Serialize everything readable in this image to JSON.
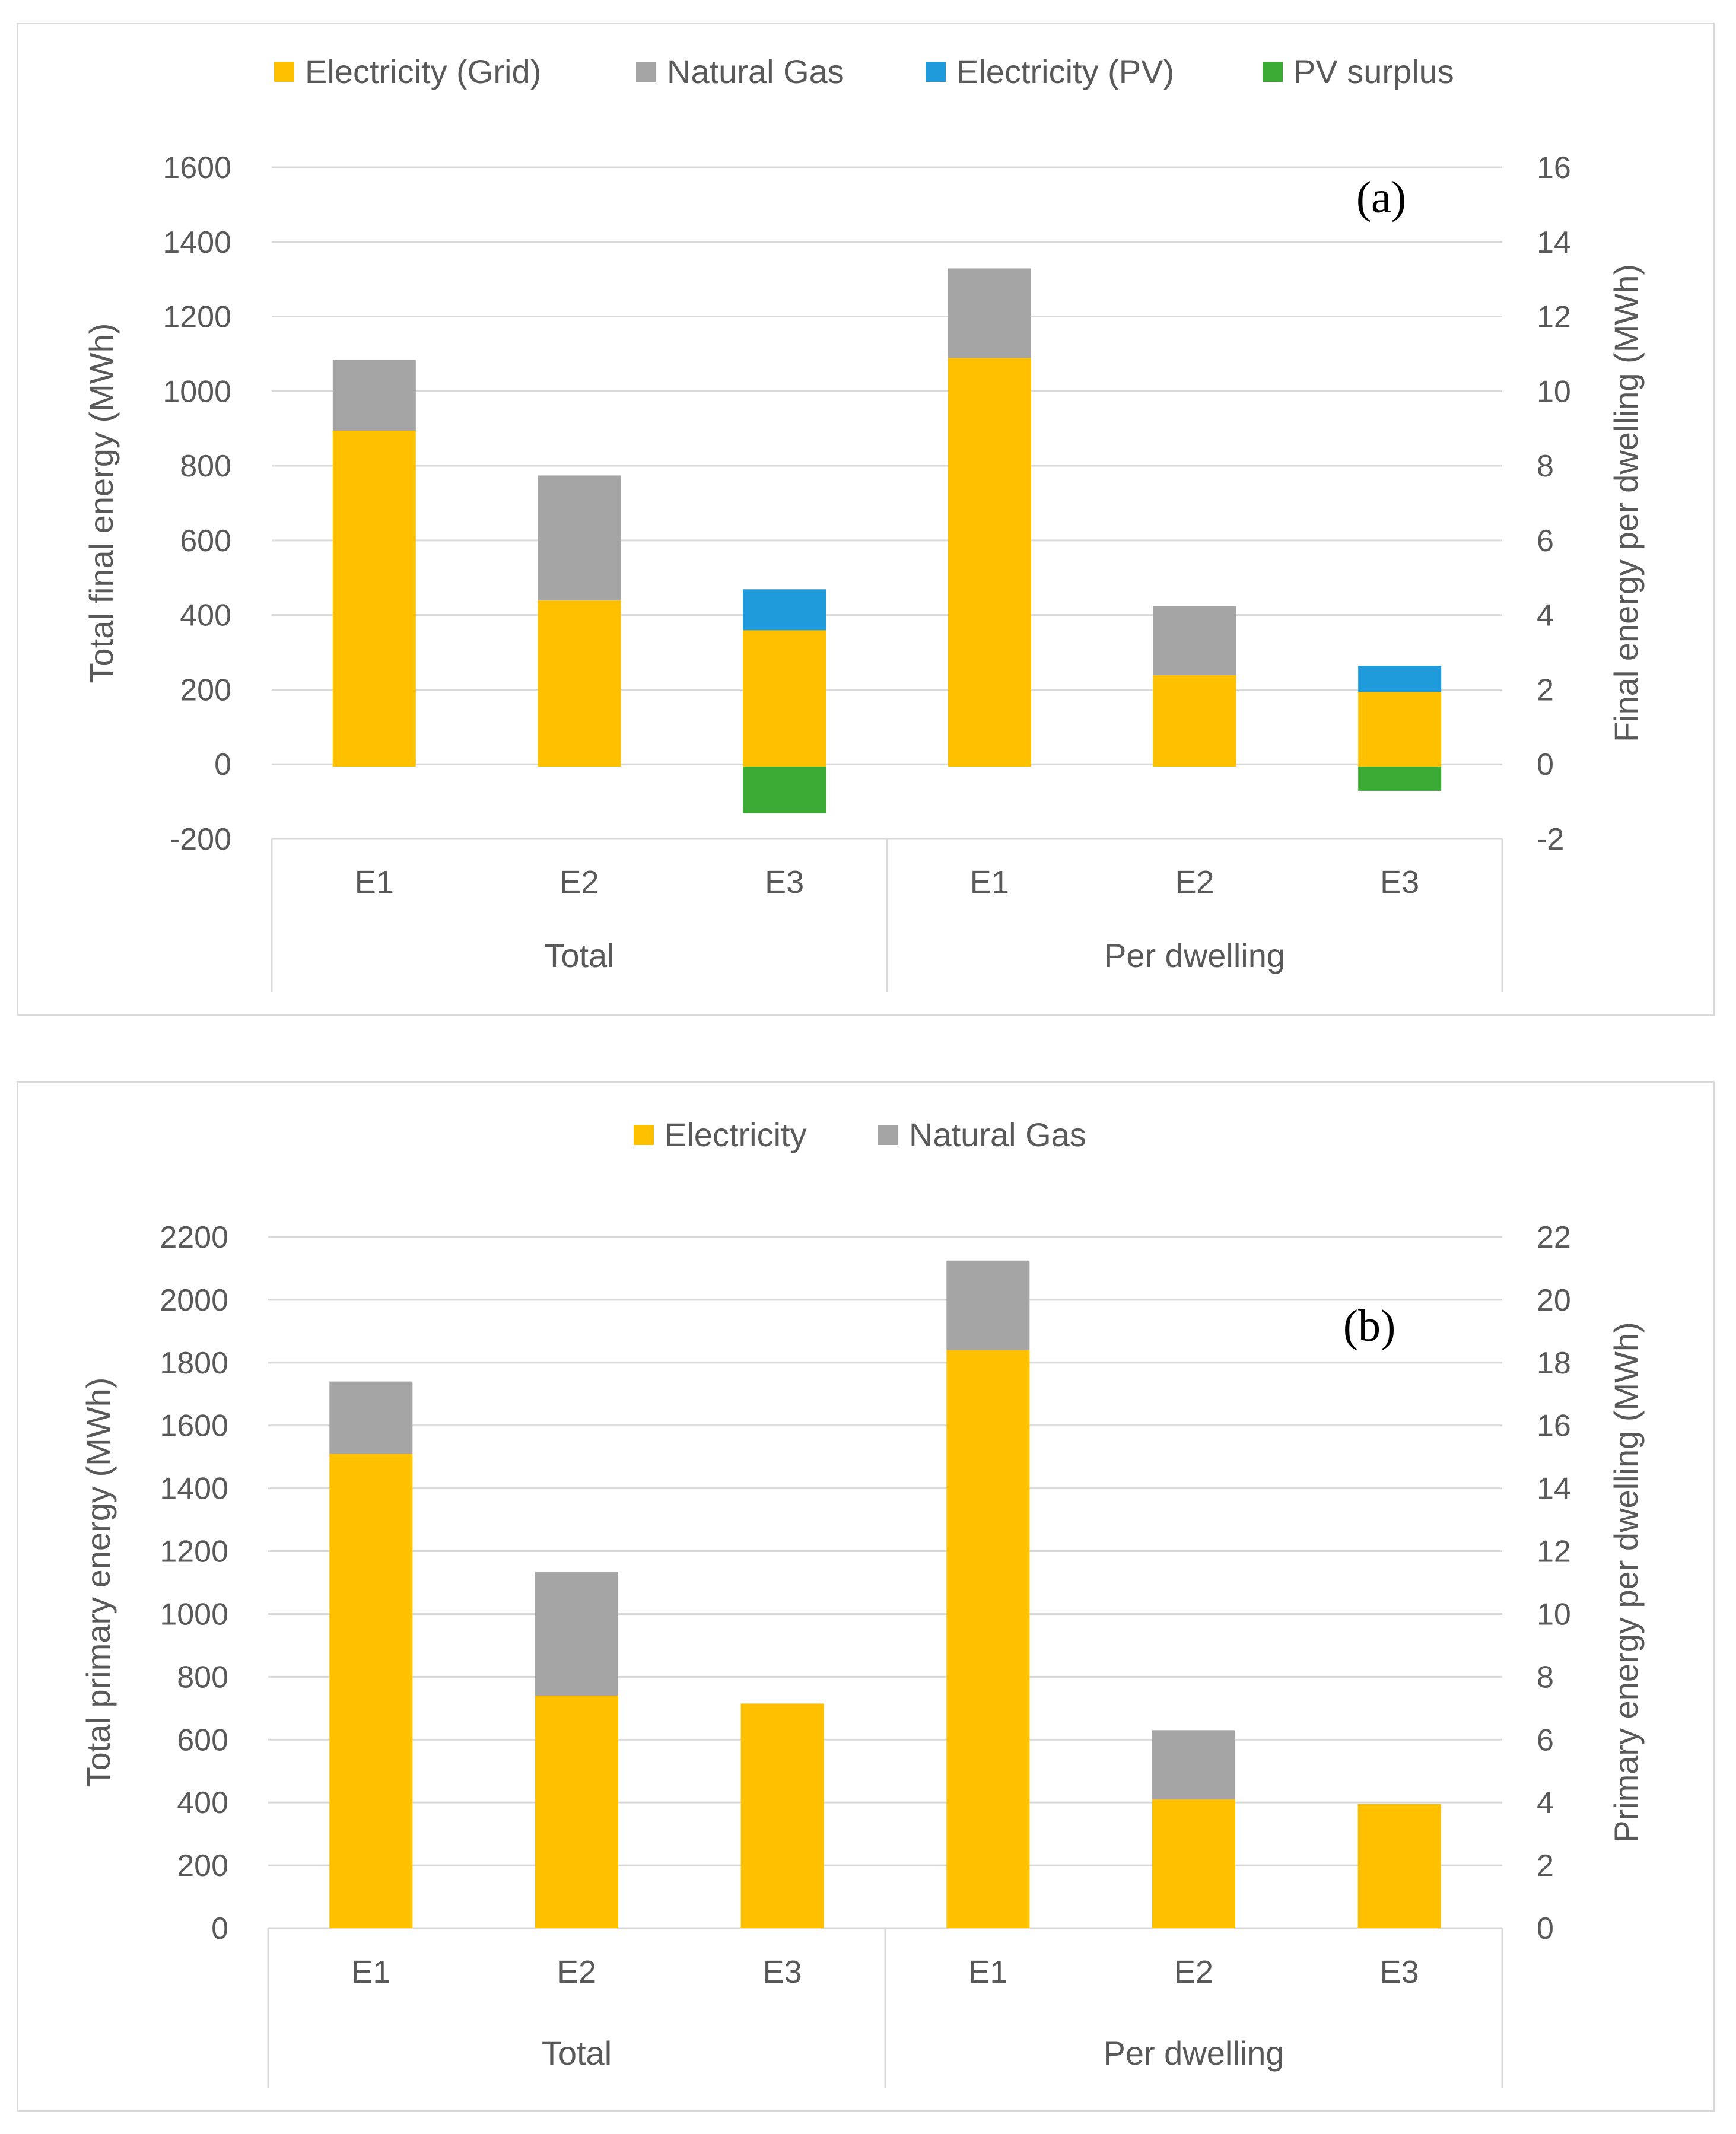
{
  "chart_data": [
    {
      "type": "bar",
      "stacked": true,
      "panel_label": "(a)",
      "groups": [
        {
          "label": "Total",
          "categories": [
            "E1",
            "E2",
            "E3"
          ],
          "axis": "left"
        },
        {
          "label": "Per dwelling",
          "categories": [
            "E1",
            "E2",
            "E3"
          ],
          "axis": "right"
        }
      ],
      "ylabel": "Total final energy (MWh)",
      "y2label": "Final energy per dwelling (MWh)",
      "ylim": [
        -200,
        1600
      ],
      "y2lim": [
        -2,
        16
      ],
      "yticks": [
        "-200",
        "0",
        "200",
        "400",
        "600",
        "800",
        "1000",
        "1200",
        "1400",
        "1600"
      ],
      "y2ticks": [
        "-2",
        "0",
        "2",
        "4",
        "6",
        "8",
        "10",
        "12",
        "14",
        "16"
      ],
      "grid": true,
      "legend_position": "top",
      "series": [
        {
          "name": "Electricity (Grid)",
          "color": "#FFC000",
          "values": [
            900,
            445,
            365,
            10.95,
            2.45,
            2.0
          ]
        },
        {
          "name": "Natural Gas",
          "color": "#A5A5A5",
          "values": [
            190,
            335,
            0,
            2.4,
            1.85,
            0
          ]
        },
        {
          "name": "Electricity (PV)",
          "color": "#1F9BDC",
          "values": [
            0,
            0,
            110,
            0,
            0,
            0.7
          ]
        },
        {
          "name": "PV surplus",
          "color": "#3BAA35",
          "values": [
            0,
            0,
            -125,
            0,
            0,
            -0.65
          ]
        }
      ]
    },
    {
      "type": "bar",
      "stacked": true,
      "panel_label": "(b)",
      "groups": [
        {
          "label": "Total",
          "categories": [
            "E1",
            "E2",
            "E3"
          ],
          "axis": "left"
        },
        {
          "label": "Per dwelling",
          "categories": [
            "E1",
            "E2",
            "E3"
          ],
          "axis": "right"
        }
      ],
      "ylabel": "Total primary energy (MWh)",
      "y2label": "Primary energy per dwelling (MWh)",
      "ylim": [
        0,
        2200
      ],
      "y2lim": [
        0,
        22
      ],
      "yticks": [
        "0",
        "200",
        "400",
        "600",
        "800",
        "1000",
        "1200",
        "1400",
        "1600",
        "1800",
        "2000",
        "2200"
      ],
      "y2ticks": [
        "0",
        "2",
        "4",
        "6",
        "8",
        "10",
        "12",
        "14",
        "16",
        "18",
        "20",
        "22"
      ],
      "grid": true,
      "legend_position": "top",
      "series": [
        {
          "name": "Electricity",
          "color": "#FFC000",
          "values": [
            1510,
            740,
            715,
            18.4,
            4.1,
            3.95
          ]
        },
        {
          "name": "Natural Gas",
          "color": "#A5A5A5",
          "values": [
            230,
            395,
            0,
            2.85,
            2.2,
            0
          ]
        }
      ]
    }
  ]
}
